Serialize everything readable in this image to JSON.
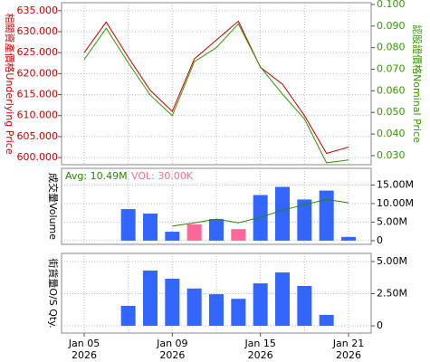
{
  "chart_data": [
    {
      "type": "line",
      "series": [
        {
          "name": "相關資產價格Underlying Price",
          "color": "#cc0000",
          "axis": "y",
          "values": [
            625,
            632.3,
            623.9,
            616,
            611,
            623.5,
            628,
            632.5,
            621.5,
            617.5,
            610,
            601,
            602.5
          ]
        },
        {
          "name": "認股證價格Nominal Price",
          "color": "#339900",
          "axis": "y2",
          "values": [
            0.0745,
            0.089,
            0.073,
            0.058,
            0.0485,
            0.0735,
            0.08,
            0.091,
            0.071,
            0.0585,
            0.047,
            0.0267,
            0.028
          ]
        }
      ],
      "ylim": [
        598.3,
        636.9
      ],
      "yticks": [
        {
          "value": 600,
          "label": "600.000"
        },
        {
          "value": 605,
          "label": "605.000"
        },
        {
          "value": 610,
          "label": "610.000"
        },
        {
          "value": 615,
          "label": "615.000"
        },
        {
          "value": 620,
          "label": "620.000"
        },
        {
          "value": 625,
          "label": "625.000"
        },
        {
          "value": 630,
          "label": "630.000"
        },
        {
          "value": 635,
          "label": "635.000"
        }
      ],
      "y2lim": [
        0.0258,
        0.1008
      ],
      "y2ticks": [
        {
          "value": 0.03,
          "label": "0.030"
        },
        {
          "value": 0.04,
          "label": "0.040"
        },
        {
          "value": 0.05,
          "label": "0.050"
        },
        {
          "value": 0.06,
          "label": "0.060"
        },
        {
          "value": 0.07,
          "label": "0.070"
        },
        {
          "value": 0.08,
          "label": "0.080"
        },
        {
          "value": 0.09,
          "label": "0.090"
        },
        {
          "value": 0.1,
          "label": "0.100"
        }
      ],
      "grid": true
    },
    {
      "type": "bar",
      "ylabel": "成交量Volume",
      "annotations": [
        {
          "text": "Avg: 10.49M",
          "color": "#228800"
        },
        {
          "text": "VOL: 30.00K",
          "color": "#ff6699"
        }
      ],
      "series": [
        {
          "type": "bar",
          "values": [
            null,
            null,
            8.5,
            7.3,
            2.4,
            4.4,
            5.8,
            3.1,
            12.3,
            14.5,
            11.1,
            13.5,
            1.0
          ],
          "colors": [
            null,
            null,
            "#3366ff",
            "#3366ff",
            "#3366ff",
            "#ff6699",
            "#3366ff",
            "#ff6699",
            "#3366ff",
            "#3366ff",
            "#3366ff",
            "#3366ff",
            "#3366ff"
          ]
        },
        {
          "type": "line",
          "color": "#228800",
          "values": [
            null,
            null,
            null,
            null,
            3.9,
            4.8,
            5.8,
            4.8,
            6.3,
            8.2,
            9.7,
            11.1,
            10.2
          ]
        }
      ],
      "ylim": [
        -1,
        19.5
      ],
      "yaxis_side": "right",
      "yticks": [
        0,
        {
          "value": 5,
          "label": "5.00M"
        },
        {
          "value": 10,
          "label": "10.00M"
        },
        {
          "value": 15,
          "label": "15.00M"
        }
      ],
      "grid": true
    },
    {
      "type": "bar",
      "ylabel": "街貨量O/S Qty.",
      "series": [
        {
          "type": "bar",
          "color": "#3366ff",
          "values": [
            null,
            null,
            1.55,
            4.3,
            3.66,
            2.9,
            2.46,
            2.1,
            3.3,
            4.15,
            3.1,
            0.85,
            null
          ]
        }
      ],
      "ylim": [
        -0.56,
        5.63
      ],
      "yaxis_side": "right",
      "yticks": [
        0,
        {
          "value": 2.5,
          "label": "2.50M"
        },
        {
          "value": 5,
          "label": "5.00M"
        }
      ],
      "grid": true,
      "categories": [
        "Jan 05",
        null,
        null,
        null,
        "Jan 09",
        null,
        null,
        null,
        "Jan 15",
        null,
        null,
        null,
        "Jan 21"
      ],
      "category_years": [
        "2026",
        null,
        null,
        null,
        "2026",
        null,
        null,
        null,
        "2026",
        null,
        null,
        null,
        "2026"
      ]
    }
  ]
}
